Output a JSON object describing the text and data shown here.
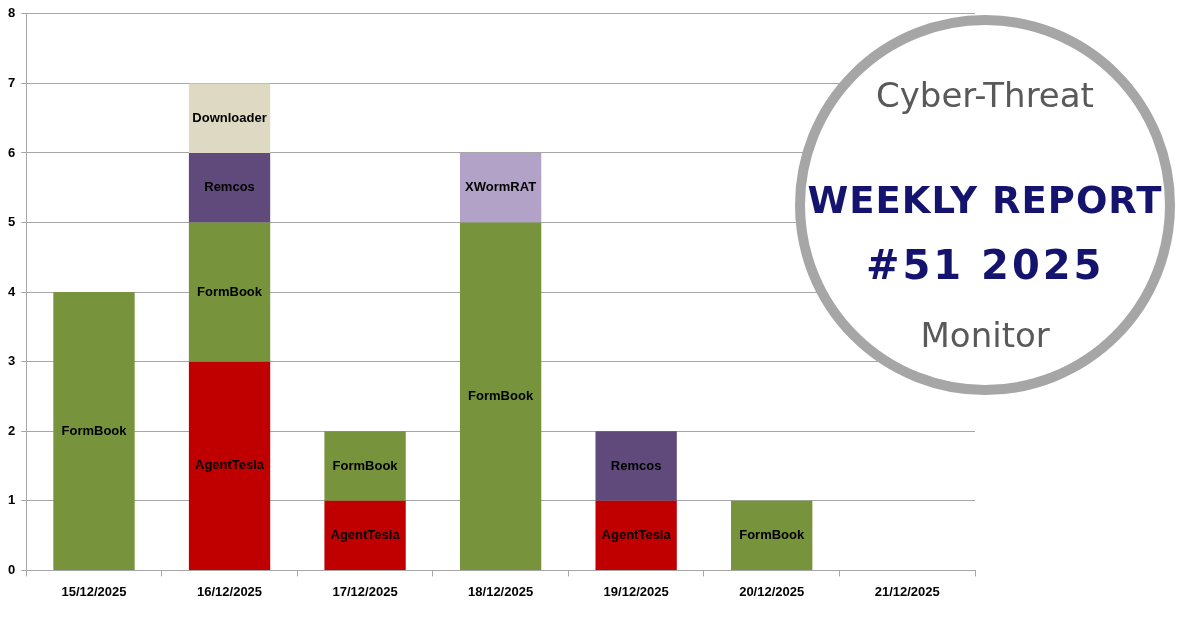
{
  "chart_data": {
    "type": "bar",
    "title": "WEEKLY REPORT",
    "subtitle": "#51 2025",
    "annotations": [
      "Cyber-Threat",
      "Monitor"
    ],
    "categories": [
      "15/12/2025",
      "16/12/2025",
      "17/12/2025",
      "18/12/2025",
      "19/12/2025",
      "20/12/2025",
      "21/12/2025"
    ],
    "series": [
      {
        "name": "AgentTesla",
        "color": "#c00000",
        "values": [
          null,
          3,
          1,
          null,
          1,
          null,
          null
        ]
      },
      {
        "name": "FormBook",
        "color": "#77933c",
        "values": [
          4,
          2,
          1,
          5,
          null,
          1,
          null
        ]
      },
      {
        "name": "Remcos",
        "color": "#604a7b",
        "values": [
          null,
          1,
          null,
          null,
          1,
          null,
          null
        ]
      },
      {
        "name": "Downloader",
        "color": "#ddd9c3",
        "values": [
          null,
          1,
          null,
          null,
          null,
          null,
          null
        ]
      },
      {
        "name": "XWormRAT",
        "color": "#b3a2c7",
        "values": [
          null,
          null,
          null,
          1,
          null,
          null,
          null
        ]
      }
    ],
    "stacked": true,
    "ylim": [
      0,
      8
    ],
    "yticks": [
      0,
      1,
      2,
      3,
      4,
      5,
      6,
      7,
      8
    ],
    "grid": "y"
  }
}
